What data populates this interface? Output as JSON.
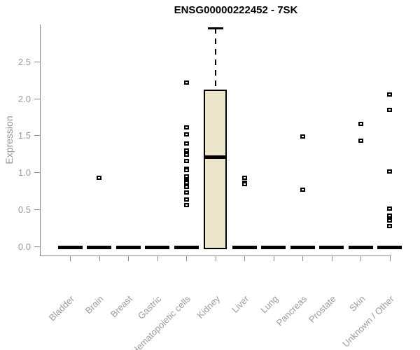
{
  "title": "ENSG00000222452 - 7SK",
  "colors": {
    "title": "#000000",
    "axis_line": "#8a8a8a",
    "axis_text": "#9b9b9b",
    "box_fill": "#ece5cb",
    "box_border": "#000000",
    "point": "#000000",
    "zero_dash": "#000000"
  },
  "chart_data": {
    "type": "boxplot",
    "title": "ENSG00000222452 - 7SK",
    "xlabel": "",
    "ylabel": "Expression",
    "ylim": [
      0,
      3.0
    ],
    "yticks": [
      0.0,
      0.5,
      1.0,
      1.5,
      2.0,
      2.5
    ],
    "grid": false,
    "legend": false,
    "categories": [
      {
        "label": "Bladder",
        "zero_dash": true,
        "points": []
      },
      {
        "label": "Brain",
        "zero_dash": true,
        "points": [
          0.93
        ]
      },
      {
        "label": "Breast",
        "zero_dash": true,
        "points": []
      },
      {
        "label": "Gastric",
        "zero_dash": true,
        "points": []
      },
      {
        "label": "Hematopoietic cells",
        "zero_dash": true,
        "points": [
          2.21,
          1.61,
          1.51,
          1.39,
          1.3,
          1.24,
          1.15,
          1.05,
          1.03,
          0.95,
          0.9,
          0.88,
          0.86,
          0.8,
          0.73,
          0.63,
          0.56
        ]
      },
      {
        "label": "Kidney",
        "zero_dash": false,
        "points": [],
        "box": {
          "q1": 0.0,
          "median": 1.21,
          "q3": 2.12,
          "whisker_low": 0.0,
          "whisker_high": 2.95
        }
      },
      {
        "label": "Liver",
        "zero_dash": true,
        "points": [
          0.93,
          0.86,
          0.84
        ]
      },
      {
        "label": "Lung",
        "zero_dash": true,
        "points": []
      },
      {
        "label": "Pancreas",
        "zero_dash": true,
        "points": [
          1.49,
          0.77
        ]
      },
      {
        "label": "Prostate",
        "zero_dash": true,
        "points": []
      },
      {
        "label": "Skin",
        "zero_dash": true,
        "points": [
          1.66,
          1.43
        ]
      },
      {
        "label": "Unknown / Other",
        "zero_dash": true,
        "points": [
          2.05,
          1.85,
          1.01,
          0.51,
          0.42,
          0.37,
          0.35,
          0.27
        ]
      }
    ]
  }
}
